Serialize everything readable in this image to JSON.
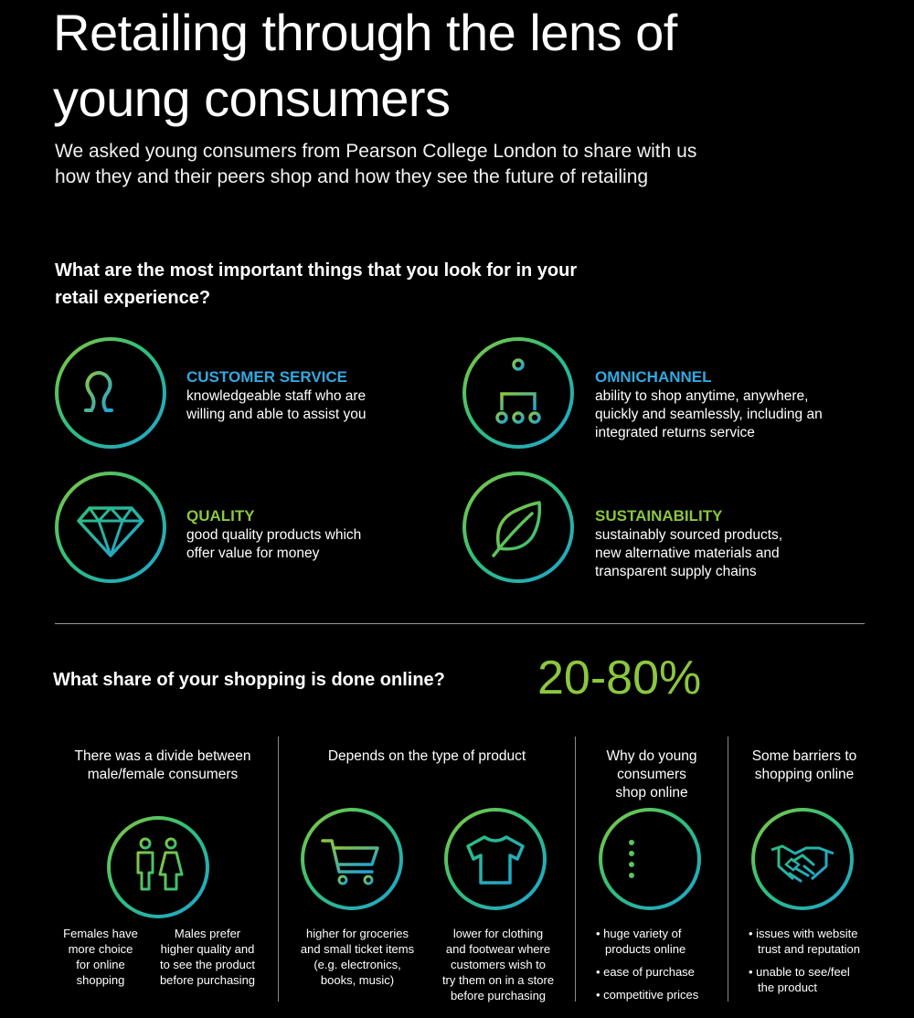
{
  "header": {
    "title_line1": "Retailing through the lens of",
    "title_line2": "young consumers",
    "subtitle_line1": "We asked young consumers from Pearson College London to share with us",
    "subtitle_line2": "how they and their peers shop and how they see the future of retailing"
  },
  "section1": {
    "question_line1": "What are the most important things that you look for in your",
    "question_line2": "retail experience?",
    "features": [
      {
        "icon": "customer-service-icon",
        "title": "CUSTOMER SERVICE",
        "title_color": "#33a9e0",
        "desc_line1": "knowledgeable staff who are",
        "desc_line2": "willing and able to assist you",
        "desc_line3": ""
      },
      {
        "icon": "omnichannel-icon",
        "title": "OMNICHANNEL",
        "title_color": "#33a9e0",
        "desc_line1": "ability to shop anytime, anywhere,",
        "desc_line2": "quickly and seamlessly, including an",
        "desc_line3": "integrated returns service"
      },
      {
        "icon": "diamond-icon",
        "title": "QUALITY",
        "title_color": "#8cc63f",
        "desc_line1": "good quality products which",
        "desc_line2": "offer value for money",
        "desc_line3": ""
      },
      {
        "icon": "leaf-icon",
        "title": "SUSTAINABILITY",
        "title_color": "#8cc63f",
        "desc_line1": "sustainably sourced products,",
        "desc_line2": "new alternative materials and",
        "desc_line3": "transparent supply chains"
      }
    ]
  },
  "section2": {
    "question": "What share of your shopping is done online?",
    "share": "20-80%",
    "col1": {
      "head_line1": "There was a divide between",
      "head_line2": "male/female consumers",
      "left": [
        "Females have",
        "more choice",
        "for online",
        "shopping"
      ],
      "right": [
        "Males prefer",
        "higher quality and",
        "to see the product",
        "before purchasing"
      ]
    },
    "col2": {
      "head": "Depends on the type of product",
      "left": [
        "higher for groceries",
        "and small ticket items",
        "(e.g. electronics,",
        "books, music)"
      ],
      "right": [
        "lower for clothing",
        "and footwear where",
        "customers wish to",
        "try them on in a store",
        "before purchasing"
      ]
    },
    "col3": {
      "head_line1": "Why do young",
      "head_line2": "consumers",
      "head_line3": "shop online",
      "b1_line1": "• huge variety of",
      "b1_line2": "products online",
      "b2": "• ease of purchase",
      "b3": "• competitive prices"
    },
    "col4": {
      "head_line1": "Some barriers to",
      "head_line2": "shopping online",
      "b1_line1": "• issues with website",
      "b1_line2": "trust and reputation",
      "b2_line1": "• unable to see/feel",
      "b2_line2": "the product"
    }
  },
  "colors": {
    "accent_green": "#8cc63f",
    "accent_blue": "#33a9e0",
    "background": "#000000"
  }
}
